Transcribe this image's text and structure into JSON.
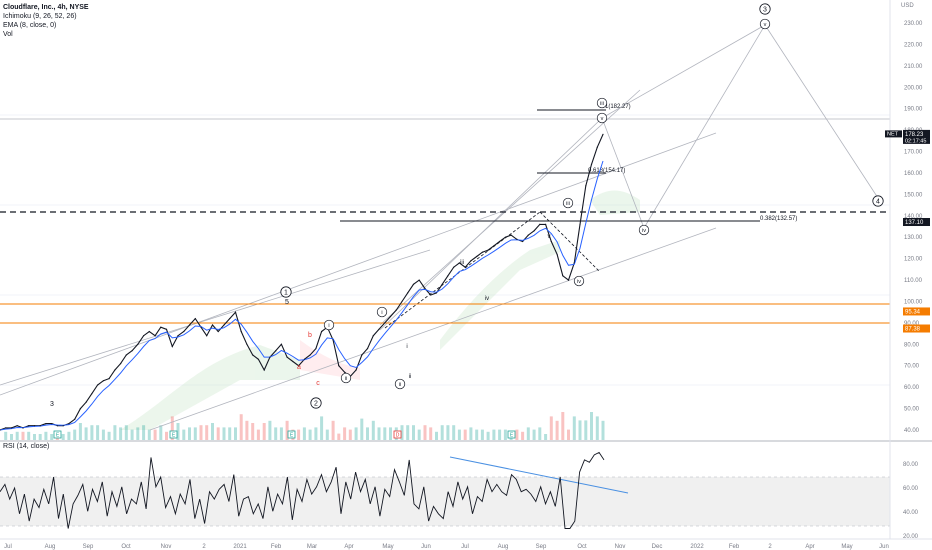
{
  "header": {
    "symbol_line": "Cloudflare, Inc., 4h, NYSE",
    "indicators": [
      "Ichimoku (9, 26, 52, 26)",
      "EMA (8, close, 0)",
      "Vol"
    ],
    "currency_top": "USD"
  },
  "rsi": {
    "legend": "RSI (14, close)",
    "ticks": [
      "80.00",
      "60.00",
      "40.00",
      "20.00"
    ],
    "upper_band": 70,
    "lower_band": 30,
    "values": [
      58,
      64,
      52,
      61,
      40,
      56,
      34,
      52,
      45,
      60,
      48,
      70,
      36,
      56,
      28,
      48,
      55,
      64,
      42,
      60,
      50,
      66,
      38,
      58,
      46,
      62,
      40,
      52,
      48,
      66,
      44,
      86,
      62,
      70,
      45,
      54,
      40,
      56,
      48,
      68,
      36,
      52,
      32,
      58,
      52,
      60,
      64,
      50,
      72,
      38,
      52,
      54,
      40,
      48,
      36,
      62,
      42,
      56,
      48,
      70,
      35,
      60,
      50,
      68,
      56,
      62,
      72,
      58,
      66,
      78,
      40,
      66,
      52,
      74,
      58,
      68,
      48,
      62,
      38,
      60,
      54,
      76,
      66,
      55,
      84,
      48,
      44,
      62,
      34,
      46,
      40,
      36,
      58,
      46,
      66,
      52,
      62,
      40,
      54,
      50,
      68,
      58,
      64,
      58,
      55,
      72,
      68,
      58,
      60,
      56,
      50,
      62,
      48,
      58,
      46,
      70,
      28,
      28,
      34,
      74,
      84,
      82,
      88,
      90,
      84
    ]
  },
  "price_axis": {
    "ticks": [
      "230.00",
      "220.00",
      "210.00",
      "200.00",
      "190.00",
      "180.00",
      "170.00",
      "160.00",
      "150.00",
      "140.00",
      "130.00",
      "120.00",
      "110.00",
      "100.00",
      "90.00",
      "80.00",
      "70.00",
      "60.00",
      "50.00",
      "40.00"
    ],
    "labels": [
      {
        "text": "178.23",
        "sub": "02:17:45",
        "color": "#131722",
        "value": 178.23
      },
      {
        "text": "137.10",
        "color": "#131722",
        "value": 137.1
      },
      {
        "text": "95.34",
        "color": "#f57c00",
        "value": 95.34
      },
      {
        "text": "87.38",
        "color": "#f57c00",
        "value": 87.38
      }
    ],
    "net_tag": "NET"
  },
  "time_axis": {
    "labels": [
      "Jul",
      "Aug",
      "Sep",
      "Oct",
      "Nov",
      "2",
      "2021",
      "Feb",
      "Mar",
      "Apr",
      "May",
      "Jun",
      "Jul",
      "Aug",
      "Sep",
      "Oct",
      "Nov",
      "Dec",
      "2022",
      "Feb",
      "2",
      "Apr",
      "May",
      "Jun"
    ]
  },
  "chart_data": {
    "type": "line",
    "title": "Cloudflare, Inc., 4h, NYSE",
    "ylim": [
      35,
      235
    ],
    "last_price": 178.23,
    "countdown": "02:17:45",
    "series": [
      {
        "values": [
          40,
          41,
          41,
          42,
          41,
          42,
          42,
          42,
          43,
          43,
          42,
          42,
          43,
          45,
          50,
          53,
          57,
          61,
          63,
          64,
          68,
          71,
          75,
          77,
          80,
          84,
          86,
          84,
          88,
          87,
          79,
          84,
          86,
          89,
          92,
          88,
          84,
          89,
          86,
          89,
          92,
          95,
          86,
          80,
          75,
          73,
          68,
          74,
          77,
          80,
          74,
          72,
          70,
          73,
          75,
          78,
          86,
          88,
          82,
          70,
          67,
          65,
          68,
          75,
          78,
          84,
          87,
          90,
          93,
          96,
          100,
          104,
          108,
          110,
          106,
          103,
          104,
          108,
          112,
          116,
          118,
          116,
          119,
          121,
          123,
          124,
          126,
          128,
          130,
          131,
          129,
          128,
          131,
          133,
          136,
          136,
          128,
          122,
          112,
          110,
          118,
          136,
          154,
          164,
          172,
          178
        ]
      }
    ],
    "annotations": {
      "fib_labels": [
        "1(182.27)",
        "0.618(154.17)",
        "0.382(132.57)"
      ],
      "wave_labels": [
        "1",
        "2",
        "3",
        "4",
        "5",
        "3",
        "a",
        "b",
        "c",
        "i",
        "ii",
        "iii",
        "iv",
        "v",
        "i",
        "ii",
        "iii",
        "iv",
        "v",
        "i",
        "ii",
        "iii",
        "iv",
        "v"
      ]
    }
  }
}
